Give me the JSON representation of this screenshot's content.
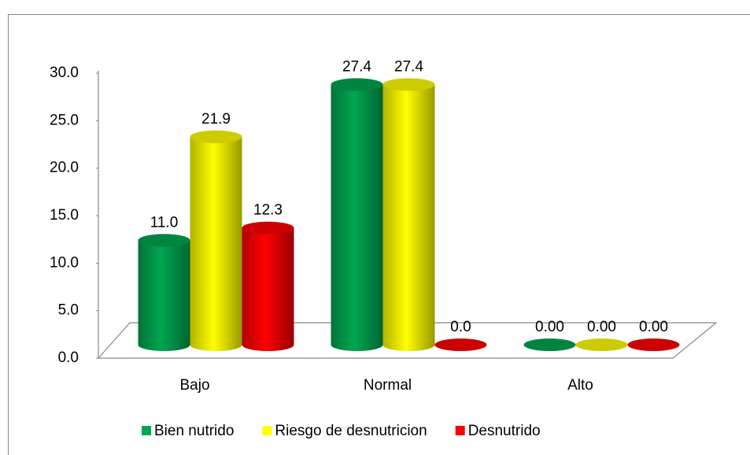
{
  "chart_data": {
    "type": "bar3d",
    "categories": [
      "Bajo",
      "Normal",
      "Alto"
    ],
    "series": [
      {
        "name": "Bien nutrido",
        "color": "#00a651",
        "values": [
          11.0,
          27.4,
          0
        ],
        "value_labels": [
          "11.0",
          "27.4",
          "0.00"
        ]
      },
      {
        "name": "Riesgo de desnutricion",
        "color": "#ffff00",
        "values": [
          21.9,
          27.4,
          0
        ],
        "value_labels": [
          "21.9",
          "27.4",
          "0.00"
        ]
      },
      {
        "name": "Desnutrido",
        "color": "#ff0000",
        "values": [
          12.3,
          0,
          0
        ],
        "value_labels": [
          "12.3",
          "0.0",
          "0.00"
        ]
      }
    ],
    "ylim": [
      0,
      30
    ],
    "yticks": [
      {
        "value": 0,
        "label": "0.0"
      },
      {
        "value": 5,
        "label": "5.0"
      },
      {
        "value": 10,
        "label": "10.0"
      },
      {
        "value": 15,
        "label": "15.0"
      },
      {
        "value": 20,
        "label": "20.0"
      },
      {
        "value": 25,
        "label": "25.0"
      },
      {
        "value": 30,
        "label": "30.0"
      }
    ],
    "legend": "bottom"
  }
}
